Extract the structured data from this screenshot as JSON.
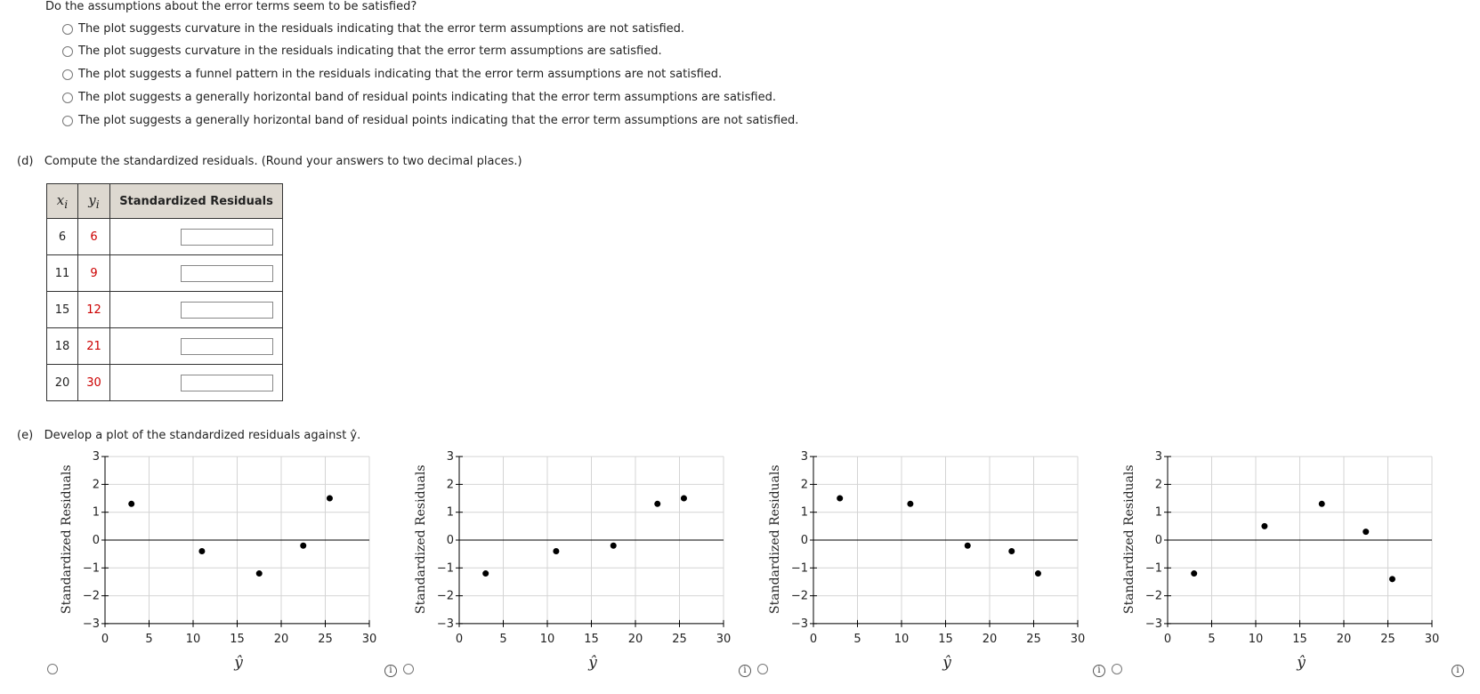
{
  "question": "Do the assumptions about the error terms seem to be satisfied?",
  "options": [
    "The plot suggests curvature in the residuals indicating that the error term assumptions are not satisfied.",
    "The plot suggests curvature in the residuals indicating that the error term assumptions are satisfied.",
    "The plot suggests a funnel pattern in the residuals indicating that the error term assumptions are not satisfied.",
    "The plot suggests a generally horizontal band of residual points indicating that the error term assumptions are satisfied.",
    "The plot suggests a generally horizontal band of residual points indicating that the error term assumptions are not satisfied."
  ],
  "part_d": {
    "label": "(d)",
    "text": "Compute the standardized residuals. (Round your answers to two decimal places.)",
    "headers": [
      "x",
      "y",
      "Standardized Residuals"
    ],
    "header_subscript": "i",
    "rows": [
      {
        "x": "6",
        "y": "6",
        "value": ""
      },
      {
        "x": "11",
        "y": "9",
        "value": ""
      },
      {
        "x": "15",
        "y": "12",
        "value": ""
      },
      {
        "x": "18",
        "y": "21",
        "value": ""
      },
      {
        "x": "20",
        "y": "30",
        "value": ""
      }
    ]
  },
  "part_e": {
    "label": "(e)",
    "text": "Develop a plot of the standardized residuals against ŷ."
  },
  "chart_data": [
    {
      "type": "scatter",
      "ylabel": "Standardized Residuals",
      "xlabel": "ŷ",
      "xlim": [
        0,
        30
      ],
      "ylim": [
        -3,
        3
      ],
      "xticks": [
        0,
        5,
        10,
        15,
        20,
        25,
        30
      ],
      "yticks": [
        -3,
        -2,
        -1,
        0,
        1,
        2,
        3
      ],
      "grid": true,
      "points": [
        {
          "x": 3,
          "y": 1.3
        },
        {
          "x": 11,
          "y": -0.4
        },
        {
          "x": 17.5,
          "y": -1.2
        },
        {
          "x": 22.5,
          "y": -0.2
        },
        {
          "x": 25.5,
          "y": 1.5
        }
      ]
    },
    {
      "type": "scatter",
      "ylabel": "Standardized Residuals",
      "xlabel": "ŷ",
      "xlim": [
        0,
        30
      ],
      "ylim": [
        -3,
        3
      ],
      "xticks": [
        0,
        5,
        10,
        15,
        20,
        25,
        30
      ],
      "yticks": [
        -3,
        -2,
        -1,
        0,
        1,
        2,
        3
      ],
      "grid": true,
      "points": [
        {
          "x": 3,
          "y": -1.2
        },
        {
          "x": 11,
          "y": -0.4
        },
        {
          "x": 17.5,
          "y": -0.2
        },
        {
          "x": 22.5,
          "y": 1.3
        },
        {
          "x": 25.5,
          "y": 1.5
        }
      ]
    },
    {
      "type": "scatter",
      "ylabel": "Standardized Residuals",
      "xlabel": "ŷ",
      "xlim": [
        0,
        30
      ],
      "ylim": [
        -3,
        3
      ],
      "xticks": [
        0,
        5,
        10,
        15,
        20,
        25,
        30
      ],
      "yticks": [
        -3,
        -2,
        -1,
        0,
        1,
        2,
        3
      ],
      "grid": true,
      "points": [
        {
          "x": 3,
          "y": 1.5
        },
        {
          "x": 11,
          "y": 1.3
        },
        {
          "x": 17.5,
          "y": -0.2
        },
        {
          "x": 22.5,
          "y": -0.4
        },
        {
          "x": 25.5,
          "y": -1.2
        }
      ]
    },
    {
      "type": "scatter",
      "ylabel": "Standardized Residuals",
      "xlabel": "ŷ",
      "xlim": [
        0,
        30
      ],
      "ylim": [
        -3,
        3
      ],
      "xticks": [
        0,
        5,
        10,
        15,
        20,
        25,
        30
      ],
      "yticks": [
        -3,
        -2,
        -1,
        0,
        1,
        2,
        3
      ],
      "grid": true,
      "points": [
        {
          "x": 3,
          "y": -1.2
        },
        {
          "x": 11,
          "y": 0.5
        },
        {
          "x": 17.5,
          "y": 1.3
        },
        {
          "x": 22.5,
          "y": 0.3
        },
        {
          "x": 25.5,
          "y": -1.4
        }
      ]
    }
  ],
  "icons": {
    "info": "info-icon",
    "radio": "radio-button"
  }
}
